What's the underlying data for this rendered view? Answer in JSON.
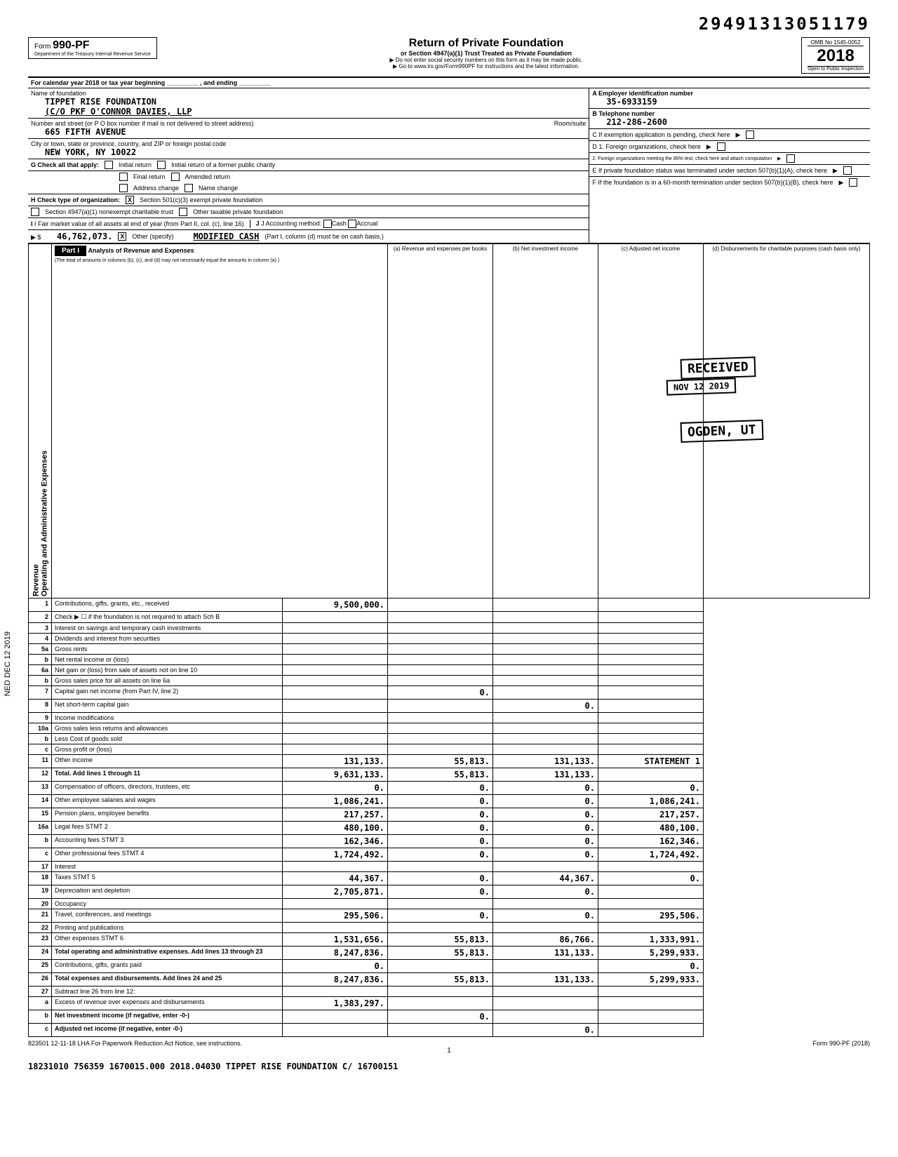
{
  "top_number": "29491313051179",
  "form": {
    "number": "990-PF",
    "dept": "Department of the Treasury\nInternal Revenue Service",
    "title": "Return of Private Foundation",
    "subtitle": "or Section 4947(a)(1) Trust Treated as Private Foundation",
    "note1": "▶ Do not enter social security numbers on this form as it may be made public.",
    "note2": "▶ Go to www.irs.gov/Form990PF for instructions and the latest information.",
    "omb": "OMB No 1545-0052",
    "year": "2018",
    "inspection": "Open to Public Inspection"
  },
  "cal_year": "For calendar year 2018 or tax year beginning _________ , and ending _________",
  "foundation": {
    "name_label": "Name of foundation",
    "name": "TIPPET RISE FOUNDATION",
    "co": "(C/O PKF O'CONNOR DAVIES, LLP",
    "addr_label": "Number and street (or P O box number if mail is not delivered to street address)",
    "address": "665 FIFTH AVENUE",
    "room_label": "Room/suite",
    "city_label": "City or town, state or province, country, and ZIP or foreign postal code",
    "city": "NEW YORK, NY   10022"
  },
  "box_a": {
    "label": "A Employer identification number",
    "value": "35-6933159"
  },
  "box_b": {
    "label": "B Telephone number",
    "value": "212-286-2600"
  },
  "box_c": {
    "label": "C If exemption application is pending, check here"
  },
  "box_d1": {
    "label": "D 1. Foreign organizations, check here"
  },
  "box_d2": {
    "label": "2. Foreign organizations meeting the 85% test, check here and attach computation"
  },
  "box_e": {
    "label": "E If private foundation status was terminated under section 507(b)(1)(A), check here"
  },
  "box_f": {
    "label": "F If the foundation is in a 60-month termination under section 507(b)(1)(B), check here"
  },
  "section_g": {
    "label": "G Check all that apply:",
    "options": [
      "Initial return",
      "Final return",
      "Address change",
      "Initial return of a former public charity",
      "Amended return",
      "Name change"
    ]
  },
  "section_h": {
    "label": "H Check type of organization:",
    "opt1": "Section 501(c)(3) exempt private foundation",
    "opt2": "Section 4947(a)(1) nonexempt charitable trust",
    "opt3": "Other taxable private foundation"
  },
  "section_i": {
    "label": "I Fair market value of all assets at end of year (from Part II, col. (c), line 16)",
    "value": "46,762,073."
  },
  "section_j": {
    "label": "J Accounting method:",
    "cash": "Cash",
    "accrual": "Accrual",
    "other": "Other (specify)",
    "other_val": "MODIFIED CASH",
    "note": "(Part I, column (d) must be on cash basis.)"
  },
  "part1": {
    "header": "Part I",
    "title": "Analysis of Revenue and Expenses",
    "subtitle": "(The total of amounts in columns (b), (c), and (d) may not necessarily equal the amounts in column (a) )",
    "col_a": "(a) Revenue and expenses per books",
    "col_b": "(b) Net investment income",
    "col_c": "(c) Adjusted net income",
    "col_d": "(d) Disbursements for charitable purposes (cash basis only)"
  },
  "stamps": {
    "received": "RECEIVED",
    "date": "NOV 12 2019",
    "ogden": "OGDEN, UT",
    "side": "NED DEC 12 2019"
  },
  "revenue_label": "Revenue",
  "expenses_label": "Operating and Administrative Expenses",
  "rows": [
    {
      "n": "1",
      "label": "Contributions, gifts, grants, etc., received",
      "a": "9,500,000.",
      "b": "",
      "c": "",
      "d": ""
    },
    {
      "n": "2",
      "label": "Check ▶ ☐ if the foundation is not required to attach Sch B",
      "a": "",
      "b": "",
      "c": "",
      "d": ""
    },
    {
      "n": "3",
      "label": "Interest on savings and temporary cash investments",
      "a": "",
      "b": "",
      "c": "",
      "d": ""
    },
    {
      "n": "4",
      "label": "Dividends and interest from securities",
      "a": "",
      "b": "",
      "c": "",
      "d": ""
    },
    {
      "n": "5a",
      "label": "Gross rents",
      "a": "",
      "b": "",
      "c": "",
      "d": ""
    },
    {
      "n": "b",
      "label": "Net rental income or (loss)",
      "a": "",
      "b": "",
      "c": "",
      "d": ""
    },
    {
      "n": "6a",
      "label": "Net gain or (loss) from sale of assets not on line 10",
      "a": "",
      "b": "",
      "c": "",
      "d": ""
    },
    {
      "n": "b",
      "label": "Gross sales price for all assets on line 6a",
      "a": "",
      "b": "",
      "c": "",
      "d": ""
    },
    {
      "n": "7",
      "label": "Capital gain net income (from Part IV, line 2)",
      "a": "",
      "b": "0.",
      "c": "",
      "d": ""
    },
    {
      "n": "8",
      "label": "Net short-term capital gain",
      "a": "",
      "b": "",
      "c": "0.",
      "d": ""
    },
    {
      "n": "9",
      "label": "Income modifications",
      "a": "",
      "b": "",
      "c": "",
      "d": ""
    },
    {
      "n": "10a",
      "label": "Gross sales less returns and allowances",
      "a": "",
      "b": "",
      "c": "",
      "d": ""
    },
    {
      "n": "b",
      "label": "Less Cost of goods sold",
      "a": "",
      "b": "",
      "c": "",
      "d": ""
    },
    {
      "n": "c",
      "label": "Gross profit or (loss)",
      "a": "",
      "b": "",
      "c": "",
      "d": ""
    },
    {
      "n": "11",
      "label": "Other income",
      "a": "131,133.",
      "b": "55,813.",
      "c": "131,133.",
      "d": "STATEMENT 1"
    },
    {
      "n": "12",
      "label": "Total. Add lines 1 through 11",
      "a": "9,631,133.",
      "b": "55,813.",
      "c": "131,133.",
      "d": "",
      "bold": true
    },
    {
      "n": "13",
      "label": "Compensation of officers, directors, trustees, etc",
      "a": "0.",
      "b": "0.",
      "c": "0.",
      "d": "0."
    },
    {
      "n": "14",
      "label": "Other employee salaries and wages",
      "a": "1,086,241.",
      "b": "0.",
      "c": "0.",
      "d": "1,086,241."
    },
    {
      "n": "15",
      "label": "Pension plans, employee benefits",
      "a": "217,257.",
      "b": "0.",
      "c": "0.",
      "d": "217,257."
    },
    {
      "n": "16a",
      "label": "Legal fees                              STMT 2",
      "a": "480,100.",
      "b": "0.",
      "c": "0.",
      "d": "480,100."
    },
    {
      "n": "b",
      "label": "Accounting fees                      STMT 3",
      "a": "162,346.",
      "b": "0.",
      "c": "0.",
      "d": "162,346."
    },
    {
      "n": "c",
      "label": "Other professional fees           STMT 4",
      "a": "1,724,492.",
      "b": "0.",
      "c": "0.",
      "d": "1,724,492."
    },
    {
      "n": "17",
      "label": "Interest",
      "a": "",
      "b": "",
      "c": "",
      "d": ""
    },
    {
      "n": "18",
      "label": "Taxes                                      STMT 5",
      "a": "44,367.",
      "b": "0.",
      "c": "44,367.",
      "d": "0."
    },
    {
      "n": "19",
      "label": "Depreciation and depletion",
      "a": "2,705,871.",
      "b": "0.",
      "c": "0.",
      "d": ""
    },
    {
      "n": "20",
      "label": "Occupancy",
      "a": "",
      "b": "",
      "c": "",
      "d": ""
    },
    {
      "n": "21",
      "label": "Travel, conferences, and meetings",
      "a": "295,506.",
      "b": "0.",
      "c": "0.",
      "d": "295,506."
    },
    {
      "n": "22",
      "label": "Printing and publications",
      "a": "",
      "b": "",
      "c": "",
      "d": ""
    },
    {
      "n": "23",
      "label": "Other expenses                       STMT 6",
      "a": "1,531,656.",
      "b": "55,813.",
      "c": "86,766.",
      "d": "1,333,991."
    },
    {
      "n": "24",
      "label": "Total operating and administrative expenses. Add lines 13 through 23",
      "a": "8,247,836.",
      "b": "55,813.",
      "c": "131,133.",
      "d": "5,299,933.",
      "bold": true
    },
    {
      "n": "25",
      "label": "Contributions, gifts, grants paid",
      "a": "0.",
      "b": "",
      "c": "",
      "d": "0."
    },
    {
      "n": "26",
      "label": "Total expenses and disbursements. Add lines 24 and 25",
      "a": "8,247,836.",
      "b": "55,813.",
      "c": "131,133.",
      "d": "5,299,933.",
      "bold": true
    },
    {
      "n": "27",
      "label": "Subtract line 26 from line 12:",
      "a": "",
      "b": "",
      "c": "",
      "d": ""
    },
    {
      "n": "a",
      "label": "Excess of revenue over expenses and disbursements",
      "a": "1,383,297.",
      "b": "",
      "c": "",
      "d": ""
    },
    {
      "n": "b",
      "label": "Net investment income (if negative, enter -0-)",
      "a": "",
      "b": "0.",
      "c": "",
      "d": "",
      "bold": true
    },
    {
      "n": "c",
      "label": "Adjusted net income (if negative, enter -0-)",
      "a": "",
      "b": "",
      "c": "0.",
      "d": "",
      "bold": true
    }
  ],
  "footer": {
    "lha": "823501 12-11-18   LHA  For Paperwork Reduction Act Notice, see instructions.",
    "form_ref": "Form 990-PF (2018)",
    "page": "1",
    "bottom": "18231010 756359 1670015.000          2018.04030 TIPPET RISE FOUNDATION C/ 16700151"
  }
}
